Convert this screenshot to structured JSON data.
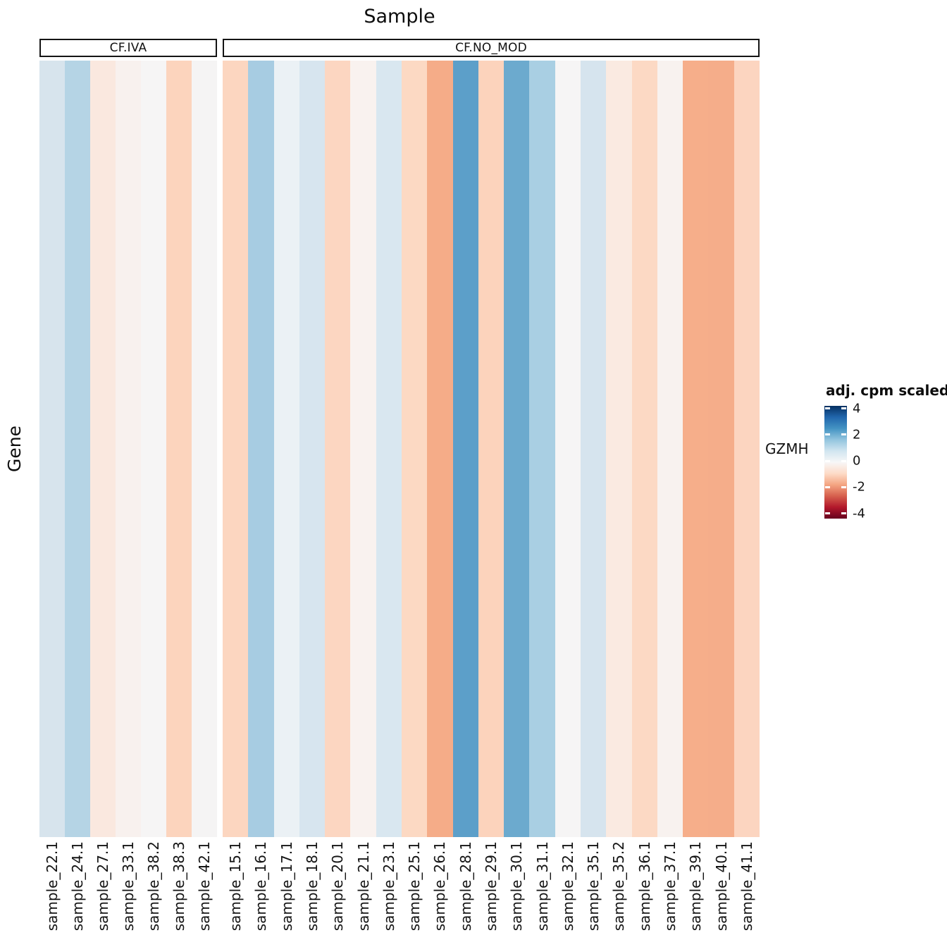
{
  "title": "Sample",
  "y_axis_title": "Gene",
  "row_label": "GZMH",
  "legend": {
    "title": "adj. cpm scaled",
    "ticks": [
      "4",
      "2",
      "0",
      "-2",
      "-4"
    ],
    "tick_values": [
      4,
      2,
      0,
      -2,
      -4
    ],
    "domain_min": -4,
    "domain_max": 4,
    "gradient_stops_top_to_bottom": [
      "#053061",
      "#2166ac",
      "#4393c3",
      "#92c5de",
      "#d1e5f0",
      "#f7f7f7",
      "#fddbc7",
      "#f4a582",
      "#d6604d",
      "#b2182b",
      "#67001f"
    ]
  },
  "facets": [
    {
      "label": "CF.IVA",
      "columns": [
        {
          "sample": "sample_22.1",
          "color": "#d7e4ed",
          "value": 0.7
        },
        {
          "sample": "sample_24.1",
          "color": "#b5d4e5",
          "value": 1.3
        },
        {
          "sample": "sample_27.1",
          "color": "#fae8df",
          "value": -0.45
        },
        {
          "sample": "sample_33.1",
          "color": "#f8f1ee",
          "value": -0.2
        },
        {
          "sample": "sample_38.2",
          "color": "#f6f5f5",
          "value": -0.05
        },
        {
          "sample": "sample_38.3",
          "color": "#fcd4bd",
          "value": -0.9
        },
        {
          "sample": "sample_42.1",
          "color": "#f5f4f4",
          "value": -0.05
        }
      ]
    },
    {
      "label": "CF.NO_MOD",
      "columns": [
        {
          "sample": "sample_15.1",
          "color": "#fcd6c0",
          "value": -0.85
        },
        {
          "sample": "sample_16.1",
          "color": "#a7cce2",
          "value": 1.5
        },
        {
          "sample": "sample_17.1",
          "color": "#ebf1f5",
          "value": 0.35
        },
        {
          "sample": "sample_18.1",
          "color": "#d7e5ef",
          "value": 0.7
        },
        {
          "sample": "sample_20.1",
          "color": "#fcd6c1",
          "value": -0.85
        },
        {
          "sample": "sample_21.1",
          "color": "#f9f2ef",
          "value": -0.2
        },
        {
          "sample": "sample_23.1",
          "color": "#d9e7f0",
          "value": 0.65
        },
        {
          "sample": "sample_25.1",
          "color": "#fcd9c3",
          "value": -0.8
        },
        {
          "sample": "sample_26.1",
          "color": "#f5ac88",
          "value": -1.55
        },
        {
          "sample": "sample_28.1",
          "color": "#5c9fc9",
          "value": 2.2
        },
        {
          "sample": "sample_29.1",
          "color": "#fcd3bc",
          "value": -0.9
        },
        {
          "sample": "sample_30.1",
          "color": "#6caace",
          "value": 2.0
        },
        {
          "sample": "sample_31.1",
          "color": "#a9cfe3",
          "value": 1.45
        },
        {
          "sample": "sample_32.1",
          "color": "#f6f5f5",
          "value": -0.05
        },
        {
          "sample": "sample_35.1",
          "color": "#d6e4ee",
          "value": 0.7
        },
        {
          "sample": "sample_35.2",
          "color": "#faeae1",
          "value": -0.4
        },
        {
          "sample": "sample_36.1",
          "color": "#fcd9c4",
          "value": -0.8
        },
        {
          "sample": "sample_37.1",
          "color": "#f8f2ef",
          "value": -0.15
        },
        {
          "sample": "sample_39.1",
          "color": "#f6ae8a",
          "value": -1.5
        },
        {
          "sample": "sample_40.1",
          "color": "#f5ad8a",
          "value": -1.5
        },
        {
          "sample": "sample_41.1",
          "color": "#fcd5c0",
          "value": -0.85
        }
      ]
    }
  ],
  "chart_data": {
    "type": "heatmap",
    "title": "Sample",
    "xlabel": "Sample",
    "ylabel": "Gene",
    "rows": [
      "GZMH"
    ],
    "facet_groups": [
      "CF.IVA",
      "CF.NO_MOD"
    ],
    "columns": [
      "sample_22.1",
      "sample_24.1",
      "sample_27.1",
      "sample_33.1",
      "sample_38.2",
      "sample_38.3",
      "sample_42.1",
      "sample_15.1",
      "sample_16.1",
      "sample_17.1",
      "sample_18.1",
      "sample_20.1",
      "sample_21.1",
      "sample_23.1",
      "sample_25.1",
      "sample_26.1",
      "sample_28.1",
      "sample_29.1",
      "sample_30.1",
      "sample_31.1",
      "sample_32.1",
      "sample_35.1",
      "sample_35.2",
      "sample_36.1",
      "sample_37.1",
      "sample_39.1",
      "sample_40.1",
      "sample_41.1"
    ],
    "column_groups": [
      "CF.IVA",
      "CF.IVA",
      "CF.IVA",
      "CF.IVA",
      "CF.IVA",
      "CF.IVA",
      "CF.IVA",
      "CF.NO_MOD",
      "CF.NO_MOD",
      "CF.NO_MOD",
      "CF.NO_MOD",
      "CF.NO_MOD",
      "CF.NO_MOD",
      "CF.NO_MOD",
      "CF.NO_MOD",
      "CF.NO_MOD",
      "CF.NO_MOD",
      "CF.NO_MOD",
      "CF.NO_MOD",
      "CF.NO_MOD",
      "CF.NO_MOD",
      "CF.NO_MOD",
      "CF.NO_MOD",
      "CF.NO_MOD",
      "CF.NO_MOD",
      "CF.NO_MOD",
      "CF.NO_MOD",
      "CF.NO_MOD"
    ],
    "values_by_row": {
      "GZMH": [
        0.7,
        1.3,
        -0.45,
        -0.2,
        -0.05,
        -0.9,
        -0.05,
        -0.85,
        1.5,
        0.35,
        0.7,
        -0.85,
        -0.2,
        0.65,
        -0.8,
        -1.55,
        2.2,
        -0.9,
        2.0,
        1.45,
        -0.05,
        0.7,
        -0.4,
        -0.8,
        -0.15,
        -1.5,
        -1.5,
        -0.85
      ],
      "note": ""
    },
    "value_scale": {
      "name": "RdBu diverging",
      "min": -4,
      "max": 4,
      "legend_title": "adj. cpm scaled"
    },
    "legend_position": "right",
    "grid": false
  }
}
